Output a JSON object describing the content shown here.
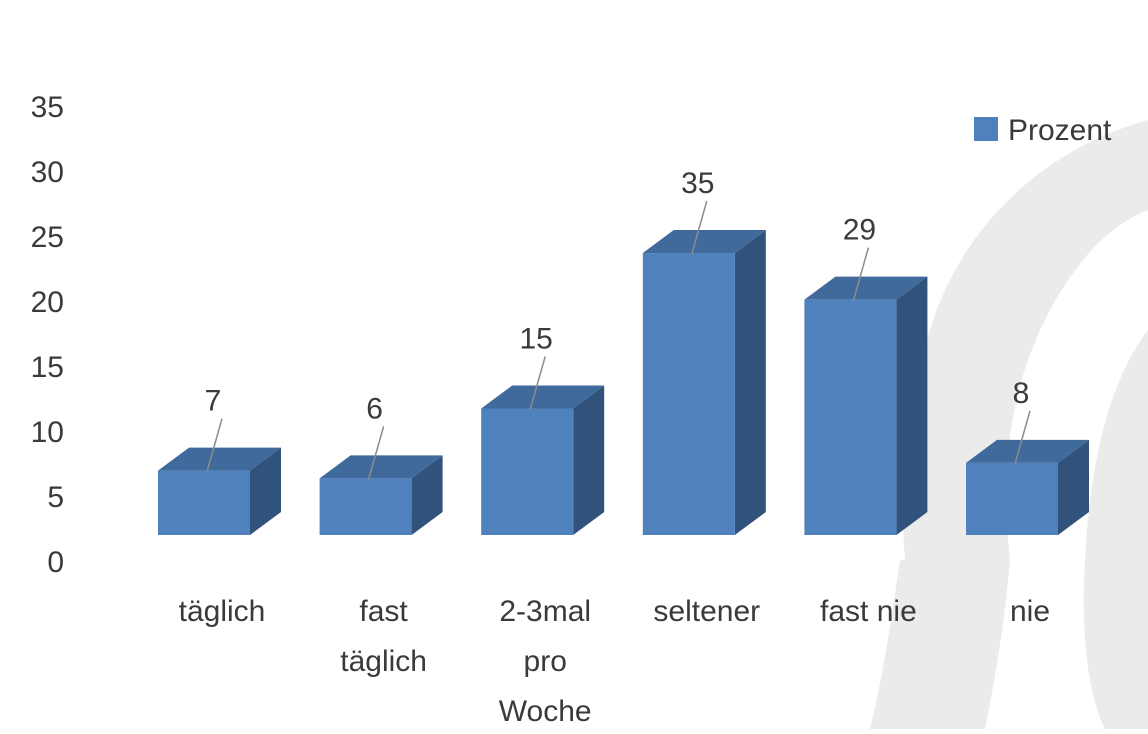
{
  "chart_data": {
    "type": "bar",
    "categories": [
      [
        "täglich"
      ],
      [
        "fast",
        "täglich"
      ],
      [
        "2-3mal",
        "pro",
        "Woche"
      ],
      [
        "seltener"
      ],
      [
        "fast nie"
      ],
      [
        "nie"
      ]
    ],
    "series": [
      {
        "name": "Prozent",
        "values": [
          7,
          6,
          15,
          35,
          29,
          8
        ]
      }
    ],
    "data_labels": [
      "7",
      "6",
      "15",
      "35",
      "29",
      "8"
    ],
    "y_ticks": [
      "0",
      "5",
      "10",
      "15",
      "20",
      "25",
      "30",
      "35"
    ],
    "ylim": [
      0,
      35
    ],
    "grid": false,
    "legend_position": "top-right",
    "style": "3d-column",
    "colors": {
      "front": "#4f81bd",
      "top": "#3f6a9b",
      "side": "#31527a",
      "leader": "#8c8c8c",
      "decor": "#ebebeb"
    }
  }
}
